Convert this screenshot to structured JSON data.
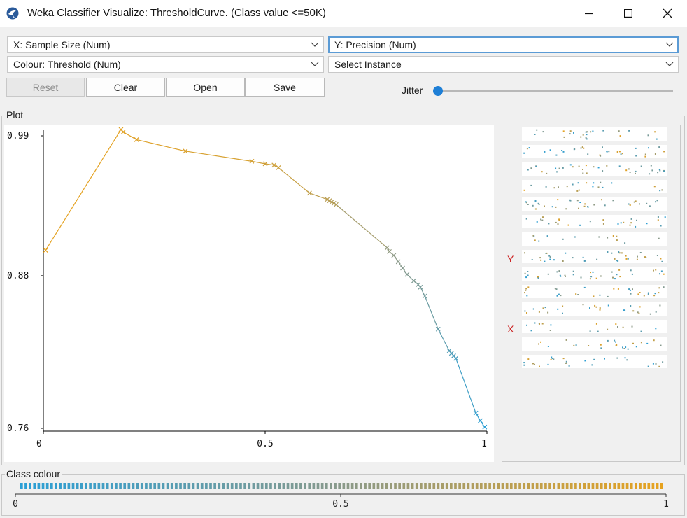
{
  "window": {
    "title": "Weka Classifier Visualize: ThresholdCurve. (Class value <=50K)"
  },
  "controls": {
    "x_axis": "X: Sample Size (Num)",
    "y_axis": "Y: Precision (Num)",
    "colour": "Colour: Threshold (Num)",
    "instance": "Select Instance",
    "reset_label": "Reset",
    "clear_label": "Clear",
    "open_label": "Open",
    "save_label": "Save",
    "jitter_label": "Jitter",
    "jitter_value": 0
  },
  "plot": {
    "label": "Plot",
    "matrix_y_label": "Y",
    "matrix_x_label": "X"
  },
  "class_colour": {
    "label": "Class colour",
    "ticks": [
      "0",
      "0.5",
      "1"
    ],
    "color_low": "#2a9fd6",
    "color_mid": "#8a9a8a",
    "color_high": "#e6a21f"
  },
  "chart_data": {
    "type": "line",
    "xlabel": "Sample Size",
    "ylabel": "Precision",
    "xlim": [
      0,
      1
    ],
    "ylim": [
      0.76,
      0.99
    ],
    "x_ticks": [
      "0",
      "0.5",
      "1"
    ],
    "y_ticks": [
      "0.99",
      "0.88",
      "0.76"
    ],
    "series": [
      {
        "marker": "x",
        "color_by": "Threshold",
        "x": [
          0.005,
          0.175,
          0.18,
          0.21,
          0.32,
          0.47,
          0.5,
          0.52,
          0.53,
          0.6,
          0.64,
          0.645,
          0.65,
          0.655,
          0.66,
          0.775,
          0.78,
          0.79,
          0.8,
          0.81,
          0.82,
          0.835,
          0.845,
          0.85,
          0.86,
          0.89,
          0.915,
          0.92,
          0.925,
          0.93,
          0.975,
          0.985,
          0.995
        ],
        "y": [
          0.9,
          0.995,
          0.993,
          0.987,
          0.978,
          0.97,
          0.968,
          0.967,
          0.965,
          0.945,
          0.94,
          0.939,
          0.938,
          0.937,
          0.936,
          0.902,
          0.899,
          0.896,
          0.891,
          0.886,
          0.881,
          0.876,
          0.873,
          0.871,
          0.864,
          0.838,
          0.821,
          0.819,
          0.817,
          0.815,
          0.772,
          0.766,
          0.761
        ],
        "threshold": [
          1.0,
          0.98,
          0.97,
          0.96,
          0.94,
          0.9,
          0.88,
          0.87,
          0.86,
          0.8,
          0.76,
          0.75,
          0.74,
          0.73,
          0.72,
          0.56,
          0.54,
          0.52,
          0.5,
          0.48,
          0.46,
          0.44,
          0.42,
          0.4,
          0.38,
          0.3,
          0.22,
          0.2,
          0.18,
          0.16,
          0.06,
          0.03,
          0.0
        ]
      }
    ]
  }
}
